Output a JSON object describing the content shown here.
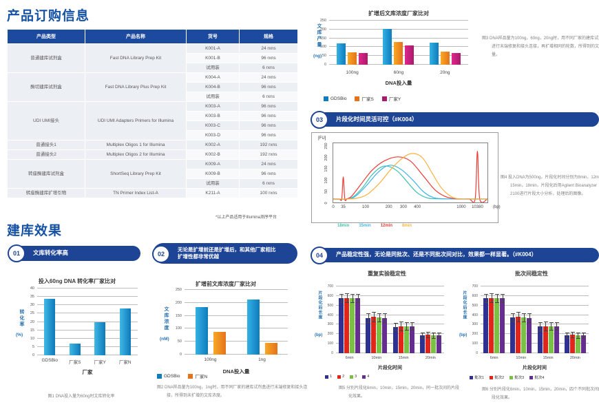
{
  "page": {
    "title_products": "产品订购信息",
    "title_effect": "建库效果",
    "footnote": "*以上产品适用于Illumina测序平台"
  },
  "table": {
    "headers": [
      "产品类型",
      "产品名称",
      "货号",
      "规格"
    ],
    "groups": [
      {
        "type": "普通建库试剂盒",
        "name": "Fast DNA Library Prep Kit",
        "items": [
          [
            "K001-A",
            "24 rxns"
          ],
          [
            "K001-B",
            "96 rxns"
          ],
          [
            "试用装",
            "6 rxns"
          ]
        ]
      },
      {
        "type": "酶切建库试剂盒",
        "name": "Fast DNA Library Plus Prep Kit",
        "items": [
          [
            "K004-A",
            "24 rxns"
          ],
          [
            "K004-B",
            "96 rxns"
          ],
          [
            "试用装",
            "6 rxns"
          ]
        ]
      },
      {
        "type": "UDI UMI接头",
        "name": "UDI UMI Adapters Primers for Illumina",
        "items": [
          [
            "K003-A",
            "96 rxns"
          ],
          [
            "K003-B",
            "96 rxns"
          ],
          [
            "K003-C",
            "96 rxns"
          ],
          [
            "K003-D",
            "96 rxns"
          ]
        ]
      },
      {
        "type": "普通接头1",
        "name": "Multiplex Oligos 1 for Illumina",
        "items": [
          [
            "K002-A",
            "192 rxns"
          ]
        ]
      },
      {
        "type": "普通接头2",
        "name": "Multiplex Oligos 2 for Illumina",
        "items": [
          [
            "K002-B",
            "192 rxns"
          ]
        ]
      },
      {
        "type": "转座酶建库试剂盒",
        "name": "ShortSeq Library Prep Kit",
        "items": [
          [
            "K009-A",
            "24 rxns"
          ],
          [
            "K009-B",
            "96 rxns"
          ],
          [
            "试用装",
            "6 rxns"
          ]
        ]
      },
      {
        "type": "转座酶建库扩增引物",
        "name": "TN Primer Index List-A",
        "items": [
          [
            "K211-A",
            "100 rxns"
          ]
        ]
      }
    ]
  },
  "pills": {
    "p01": {
      "num": "01",
      "label": "文库转化率高"
    },
    "p02": {
      "num": "02",
      "label": "无论是扩增前还是扩增后，和其他厂家相比\n扩增性都非常优越"
    },
    "p03": {
      "num": "03",
      "label": "片段化时间灵活可控（#K004）"
    },
    "p04": {
      "num": "04",
      "label": "产品稳定性强，无论是同批次、还是不同批次间对比，效果都一样显著。（#K004）"
    }
  },
  "chart_data": [
    {
      "id": "fig3_post_amp",
      "type": "bar",
      "title": "扩增后文库浓度厂家比对",
      "categories": [
        "100ng",
        "60ng",
        "20ng"
      ],
      "series": [
        {
          "name": "GDSBio",
          "color": "#0e7cbd",
          "color2": "#33b1e4",
          "values": [
            120,
            205,
            127
          ]
        },
        {
          "name": "厂家S",
          "color": "#e4731c",
          "color2": "#f8a825",
          "values": [
            70,
            130,
            73
          ]
        },
        {
          "name": "厂家Y",
          "color": "#a81a6b",
          "color2": "#e0268d",
          "values": [
            68,
            108,
            68
          ]
        }
      ],
      "ylabel": "文库产量",
      "yunit": "(ng)",
      "xlabel": "DNA投入量",
      "ylim": [
        0,
        250
      ],
      "yticks": [
        0,
        50,
        100,
        150,
        200,
        250
      ],
      "grid": true,
      "legend_position": "bottom"
    },
    {
      "id": "fig1_conversion",
      "type": "bar",
      "title": "投入60ng DNA 转化率厂家比对",
      "categories": [
        "GDSBio",
        "厂家S",
        "厂家Y",
        "厂家N"
      ],
      "series": [
        {
          "name": "转化率",
          "color": "#0f79ba",
          "color2": "#3fb9e5",
          "values": [
            34,
            7,
            20,
            28
          ]
        }
      ],
      "ylabel": "转化率",
      "yunit": "(%)",
      "xlabel": "厂家",
      "ylim": [
        0,
        40
      ],
      "yticks": [
        0,
        5,
        10,
        15,
        20,
        25,
        30,
        35,
        40
      ],
      "grid": true,
      "legend_position": "none"
    },
    {
      "id": "fig2_pre_amp",
      "type": "bar",
      "title": "扩增前文库浓度厂家比对",
      "categories": [
        "100ng",
        "1ng"
      ],
      "series": [
        {
          "name": "GDSBio",
          "color": "#0e7cbd",
          "color2": "#33b1e4",
          "values": [
            183,
            212
          ]
        },
        {
          "name": "厂家N",
          "color": "#e4731c",
          "color2": "#f8a825",
          "values": [
            88,
            46
          ]
        }
      ],
      "ylabel": "文库浓度",
      "yunit": "(nM)",
      "xlabel": "DNA投入量",
      "ylim": [
        0,
        250
      ],
      "yticks": [
        0,
        50,
        100,
        150,
        200,
        250
      ],
      "grid": true,
      "legend_position": "bottom"
    },
    {
      "id": "fig4_fragmentation",
      "type": "line",
      "title": "",
      "ylabel": "[FU]",
      "ylim": [
        0,
        260
      ],
      "yticks": [
        0,
        50,
        100,
        150,
        200,
        250
      ],
      "xticks": [
        {
          "label": "0",
          "pos": 0.0
        },
        {
          "label": "35",
          "pos": 0.065
        },
        {
          "label": "100",
          "pos": 0.21
        },
        {
          "label": "200",
          "pos": 0.36
        },
        {
          "label": "300",
          "pos": 0.455
        },
        {
          "label": "400",
          "pos": 0.545
        },
        {
          "label": "1000",
          "pos": 0.83
        },
        {
          "label": "10380",
          "pos": 0.935
        }
      ],
      "xunit": "(bp)",
      "series": [
        {
          "name": "18min",
          "color": "#3ec1ae",
          "points": [
            [
              0,
              15
            ],
            [
              0.08,
              15
            ],
            [
              0.13,
              25
            ],
            [
              0.19,
              65
            ],
            [
              0.25,
              120
            ],
            [
              0.31,
              155
            ],
            [
              0.36,
              158
            ],
            [
              0.42,
              135
            ],
            [
              0.48,
              90
            ],
            [
              0.54,
              45
            ],
            [
              0.6,
              22
            ],
            [
              0.68,
              16
            ],
            [
              1,
              15
            ]
          ]
        },
        {
          "name": "15min",
          "color": "#3fb3e4",
          "points": [
            [
              0,
              15
            ],
            [
              0.09,
              15
            ],
            [
              0.14,
              25
            ],
            [
              0.21,
              70
            ],
            [
              0.28,
              125
            ],
            [
              0.34,
              158
            ],
            [
              0.39,
              162
            ],
            [
              0.45,
              140
            ],
            [
              0.52,
              95
            ],
            [
              0.58,
              50
            ],
            [
              0.64,
              24
            ],
            [
              0.72,
              16
            ],
            [
              1,
              15
            ]
          ]
        },
        {
          "name": "12min",
          "color": "#ee3a34",
          "points": [
            [
              0,
              15
            ],
            [
              0.04,
              15
            ],
            [
              0.055,
              15
            ],
            [
              0.065,
              112
            ],
            [
              0.075,
              15
            ],
            [
              0.09,
              16
            ],
            [
              0.12,
              28
            ],
            [
              0.18,
              80
            ],
            [
              0.25,
              140
            ],
            [
              0.33,
              182
            ],
            [
              0.42,
              200
            ],
            [
              0.5,
              182
            ],
            [
              0.58,
              120
            ],
            [
              0.66,
              55
            ],
            [
              0.73,
              25
            ],
            [
              0.8,
              16
            ],
            [
              0.88,
              15
            ],
            [
              0.92,
              15
            ],
            [
              0.935,
              225
            ],
            [
              0.95,
              15
            ],
            [
              1,
              15
            ]
          ]
        },
        {
          "name": "8min",
          "color": "#f8b13f",
          "points": [
            [
              0,
              15
            ],
            [
              0.08,
              15
            ],
            [
              0.15,
              18
            ],
            [
              0.22,
              35
            ],
            [
              0.3,
              85
            ],
            [
              0.38,
              150
            ],
            [
              0.46,
              200
            ],
            [
              0.52,
              215
            ],
            [
              0.58,
              195
            ],
            [
              0.64,
              130
            ],
            [
              0.7,
              65
            ],
            [
              0.76,
              28
            ],
            [
              0.82,
              16
            ],
            [
              1,
              15
            ]
          ]
        }
      ]
    },
    {
      "id": "fig5_repeat_stability",
      "type": "bar",
      "title": "重复实验稳定性",
      "categories": [
        "6min",
        "10min",
        "15min",
        "20min"
      ],
      "series": [
        {
          "name": "1",
          "color": "#2e3192",
          "values": [
            575,
            370,
            275,
            185
          ],
          "errors": [
            45,
            50,
            45,
            30
          ]
        },
        {
          "name": "2",
          "color": "#e1251b",
          "values": [
            578,
            380,
            282,
            192
          ],
          "errors": [
            50,
            55,
            50,
            35
          ]
        },
        {
          "name": "3",
          "color": "#7ac143",
          "values": [
            575,
            372,
            280,
            185
          ],
          "errors": [
            45,
            50,
            45,
            30
          ]
        },
        {
          "name": "4",
          "color": "#662d91",
          "values": [
            575,
            370,
            280,
            185
          ],
          "errors": [
            45,
            50,
            45,
            30
          ]
        }
      ],
      "ylabel": "片段化后长度",
      "yunit": "(bp)",
      "xlabel": "片段化时间",
      "ylim": [
        0,
        700
      ],
      "yticks": [
        0,
        100,
        200,
        300,
        400,
        500,
        600,
        700
      ],
      "grid": true,
      "legend_position": "bottom"
    },
    {
      "id": "fig6_batch_stability",
      "type": "bar",
      "title": "批次间稳定性",
      "categories": [
        "6min",
        "10min",
        "15min",
        "20min"
      ],
      "series": [
        {
          "name": "批次1",
          "color": "#2e3192",
          "values": [
            575,
            372,
            278,
            185
          ],
          "errors": [
            45,
            50,
            45,
            30
          ]
        },
        {
          "name": "批次2",
          "color": "#e1251b",
          "values": [
            578,
            380,
            282,
            192
          ],
          "errors": [
            50,
            55,
            50,
            35
          ]
        },
        {
          "name": "批次3",
          "color": "#7ac143",
          "values": [
            575,
            372,
            280,
            185
          ],
          "errors": [
            45,
            50,
            45,
            30
          ]
        },
        {
          "name": "批次4",
          "color": "#662d91",
          "values": [
            575,
            370,
            280,
            185
          ],
          "errors": [
            45,
            50,
            45,
            30
          ]
        }
      ],
      "ylabel": "片段化后长度",
      "yunit": "(bp)",
      "xlabel": "片段化时间",
      "ylim": [
        0,
        700
      ],
      "yticks": [
        0,
        100,
        200,
        300,
        400,
        500,
        600,
        700
      ],
      "grid": true,
      "legend_position": "bottom"
    }
  ],
  "captions": {
    "fig1": "图1 DNA投入量为60ng时文库转化率",
    "fig2": "图2 DNA样品量为100ng，1ng时，用不同厂家的建库试剂盒进行末端修复和接头连接，所得到未扩增的文库浓度。",
    "fig3": "图3 DNA样品量为100ng，60ng，20ng时，用不同厂家的建库试剂盒进行末端修复和接头连接，再扩增相同的轮数，所得到的文库总量。",
    "fig4": "图4 投入DNA为500ng，片段化时间分别为8min，12min，15min，18min，片段化后用Agilent Bioanalyzer 2100进行片段大小分析，处理后的图像。",
    "fig5": "图5 分别片段化6min，10min，15min，20min，同一批次间的片段化效果。",
    "fig6": "图6 分别片段化6min，10min，15min，20min，四个不同批次间的片段化效果。"
  }
}
